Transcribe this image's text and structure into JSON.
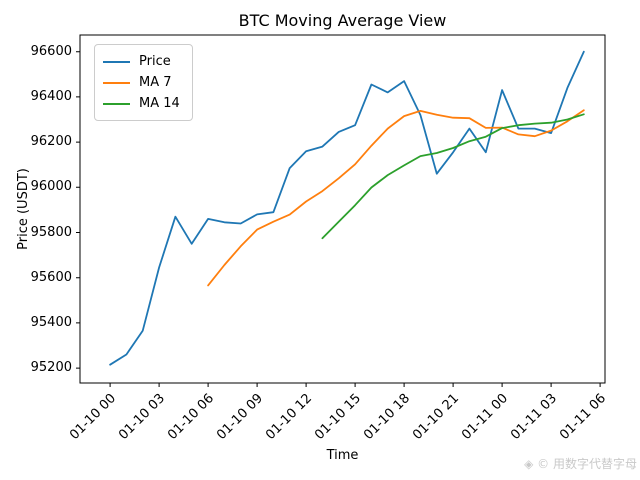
{
  "title": "BTC Moving Average View",
  "xlabel": "Time",
  "ylabel": "Price (USDT)",
  "watermark": "◈ © 用数字代替字母",
  "colors": {
    "price": "#1f77b4",
    "ma7": "#ff7f0e",
    "ma14": "#2ca02c",
    "axis": "#000000",
    "legend_border": "#cccccc",
    "watermark": "#c9c9c9"
  },
  "chart_data": {
    "type": "line",
    "title": "BTC Moving Average View",
    "xlabel": "Time",
    "ylabel": "Price (USDT)",
    "legend_position": "upper left",
    "grid": false,
    "x_unit": "hours since 2001-10 00:00 tick origin",
    "x_tick_hours": [
      0,
      3,
      6,
      9,
      12,
      15,
      18,
      21,
      24,
      27,
      30
    ],
    "x_tick_labels": [
      "01-10 00",
      "01-10 03",
      "01-10 06",
      "01-10 09",
      "01-10 12",
      "01-10 15",
      "01-10 18",
      "01-10 21",
      "01-11 00",
      "01-11 03",
      "01-11 06"
    ],
    "y_ticks": [
      95200,
      95400,
      95600,
      95800,
      96000,
      96200,
      96400,
      96600
    ],
    "xlim_hours": [
      -1.84,
      30.3
    ],
    "ylim": [
      95134,
      96674
    ],
    "series": [
      {
        "name": "Price",
        "color": "#1f77b4",
        "start_hour": 0,
        "step_hours": 1,
        "values": [
          95215,
          95260,
          95365,
          95645,
          95870,
          95750,
          95860,
          95845,
          95840,
          95880,
          95890,
          96085,
          96160,
          96180,
          96245,
          96275,
          96455,
          96420,
          96470,
          96320,
          96060,
          96155,
          96260,
          96155,
          96430,
          96260,
          96260,
          96240,
          96440,
          96600
        ]
      },
      {
        "name": "MA 7",
        "color": "#ff7f0e",
        "start_hour": 6,
        "step_hours": 1,
        "values": [
          95566,
          95656,
          95739,
          95813,
          95848,
          95879,
          95937,
          95983,
          96040,
          96102,
          96184,
          96260,
          96315,
          96338,
          96321,
          96308,
          96306,
          96263,
          96264,
          96234,
          96226,
          96251,
          96292,
          96341
        ]
      },
      {
        "name": "MA 14",
        "color": "#2ca02c",
        "start_hour": 13,
        "step_hours": 1,
        "values": [
          95775,
          95848,
          95921,
          95999,
          96054,
          96097,
          96138,
          96152,
          96174,
          96204,
          96224,
          96262,
          96275,
          96282,
          96286,
          96300,
          96323
        ]
      }
    ]
  }
}
